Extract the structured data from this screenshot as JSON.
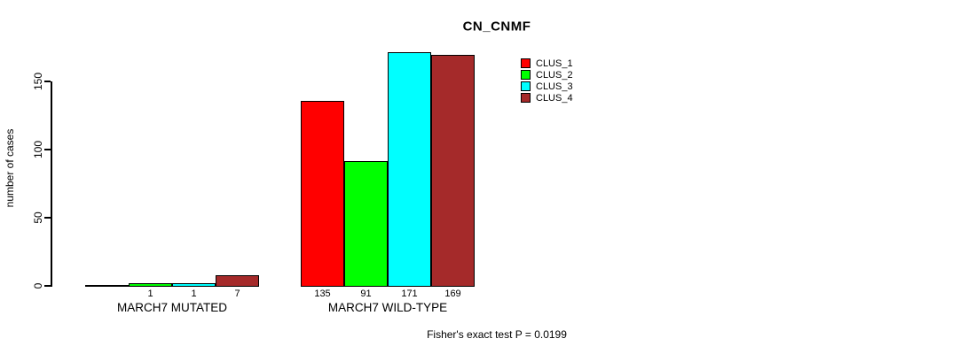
{
  "chart_data": {
    "type": "bar",
    "title": "CN_CNMF",
    "ylabel": "number of cases",
    "yticks": [
      0,
      50,
      100,
      150
    ],
    "ylim": [
      0,
      175
    ],
    "grid": false,
    "legend_position": "top-right",
    "series": [
      {
        "name": "CLUS_1",
        "color": "#ff0000"
      },
      {
        "name": "CLUS_2",
        "color": "#00ff00"
      },
      {
        "name": "CLUS_3",
        "color": "#00ffff"
      },
      {
        "name": "CLUS_4",
        "color": "#a52a2a"
      }
    ],
    "groups": [
      {
        "label": "MARCH7 MUTATED",
        "values": [
          0,
          1,
          1,
          7
        ],
        "value_labels": [
          "",
          "1",
          "1",
          "7"
        ]
      },
      {
        "label": "MARCH7 WILD-TYPE",
        "values": [
          135,
          91,
          171,
          169
        ],
        "value_labels": [
          "135",
          "91",
          "171",
          "169"
        ]
      }
    ],
    "annotation": "Fisher's exact test P = 0.0199"
  }
}
